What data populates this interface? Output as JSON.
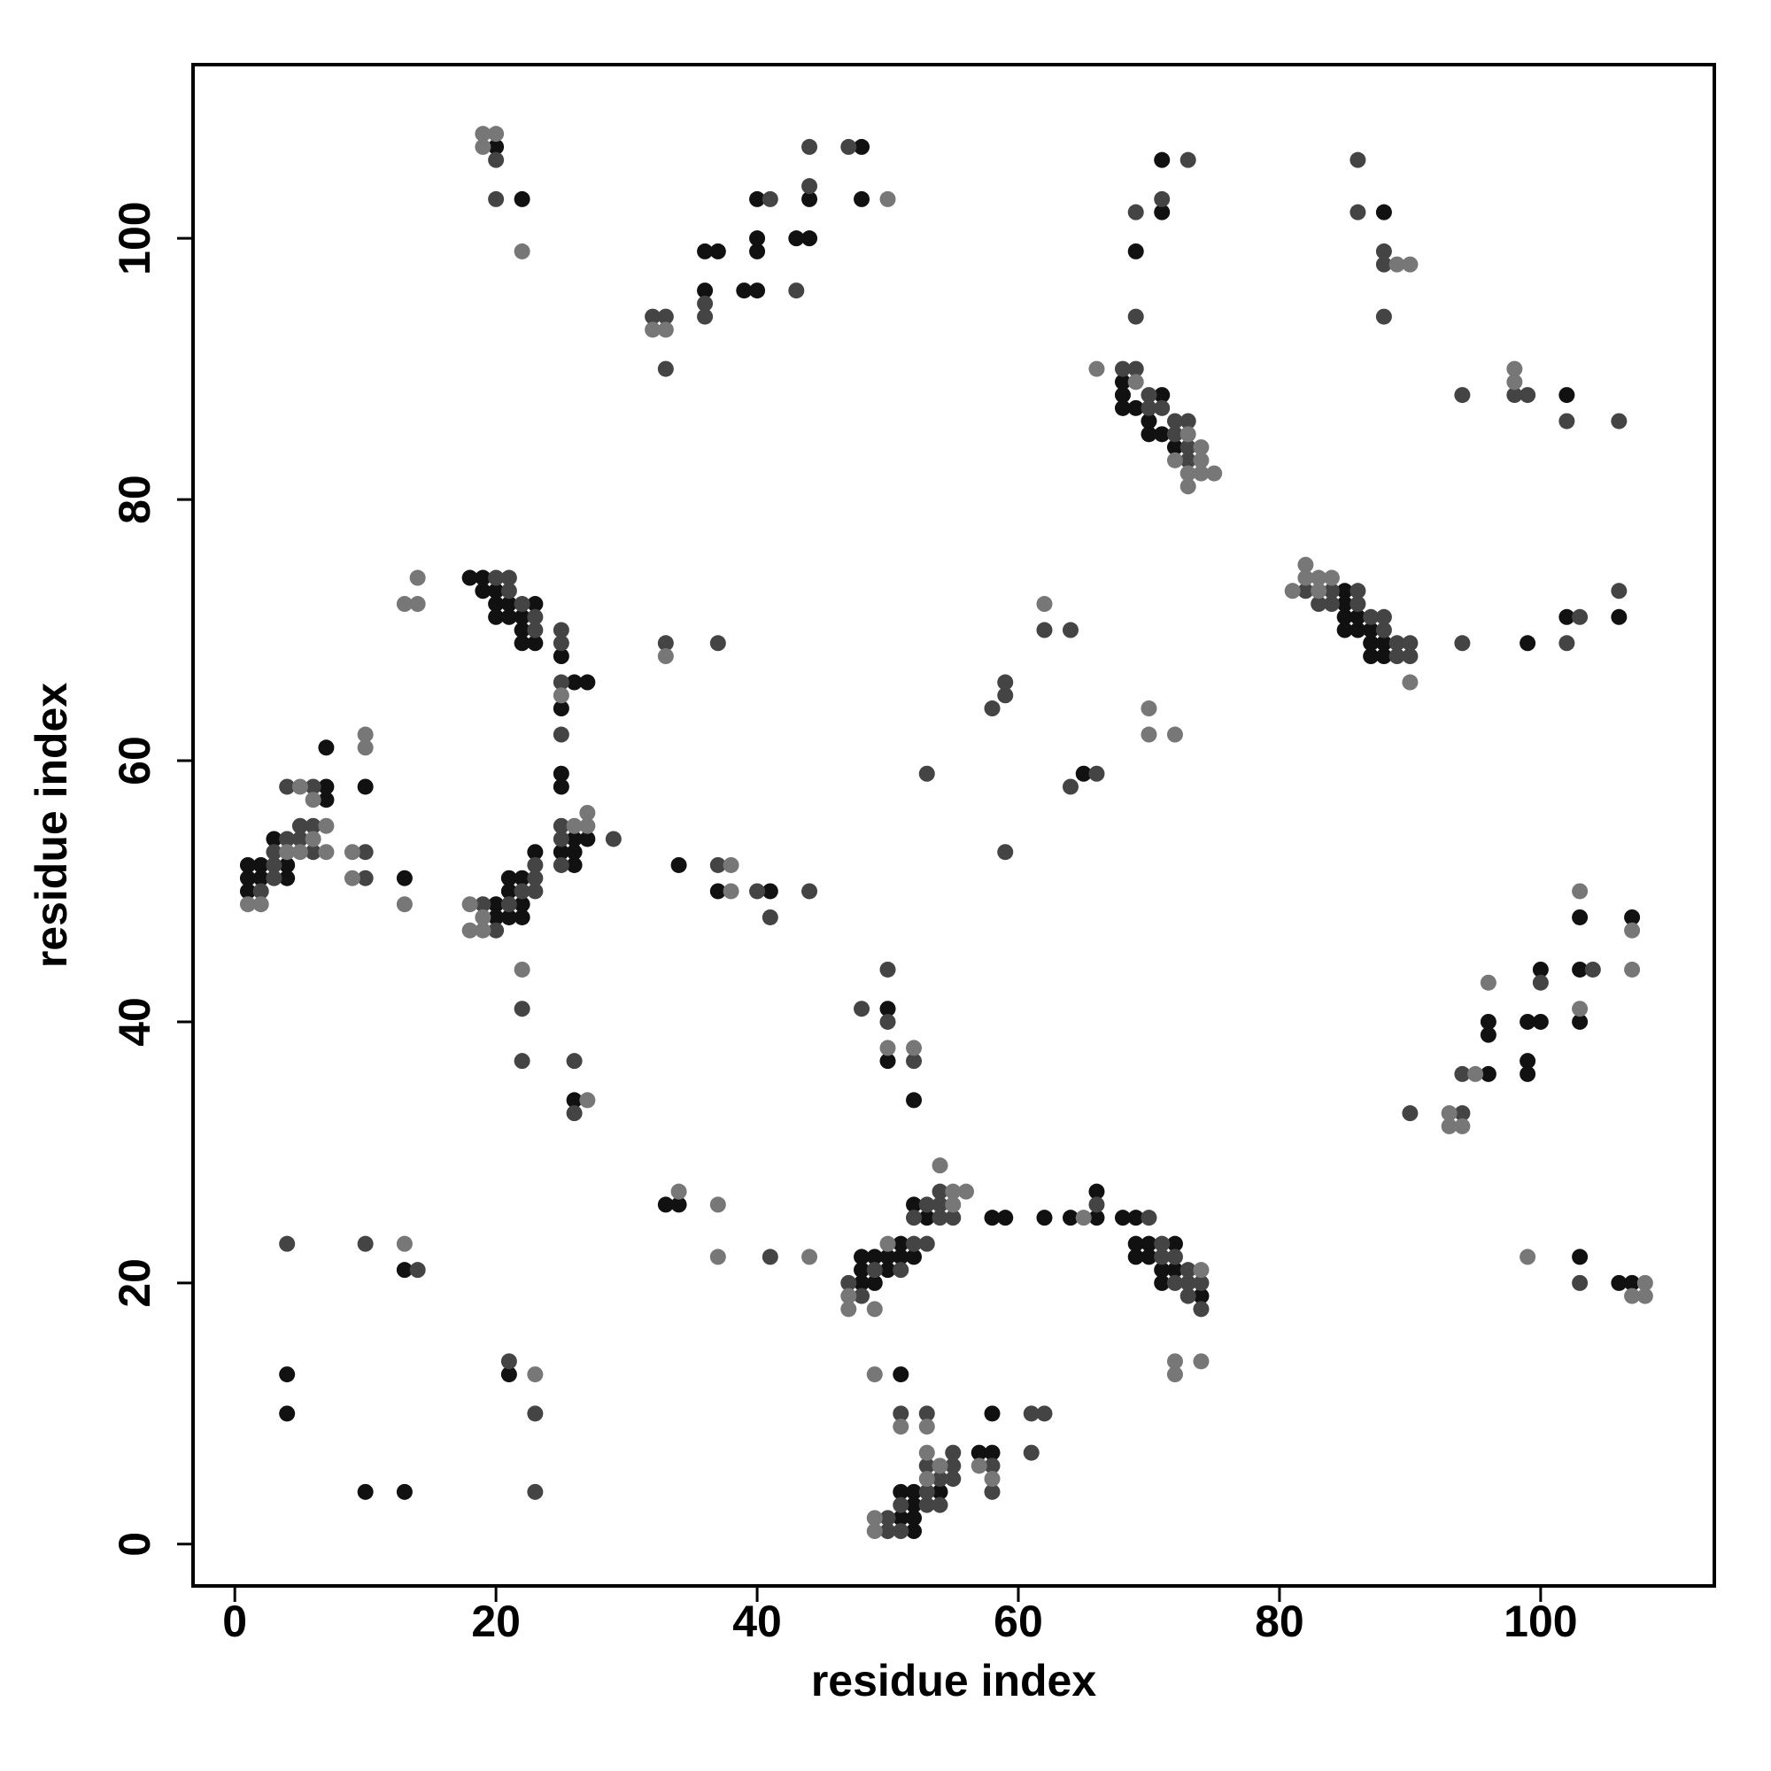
{
  "chart_data": {
    "type": "scatter",
    "xlabel": "residue index",
    "ylabel": "residue index",
    "xlim": [
      -3.2,
      113.3
    ],
    "ylim": [
      -3.2,
      113.3
    ],
    "xticks": [
      0,
      20,
      40,
      60,
      80,
      100
    ],
    "yticks": [
      0,
      20,
      40,
      60,
      80,
      100
    ],
    "series": [
      {
        "color": "#111111",
        "x": [
          20,
          22,
          36,
          37,
          36,
          39,
          40,
          40,
          40,
          40,
          43,
          44,
          44,
          48,
          48,
          71,
          71,
          69,
          68,
          68,
          71,
          68,
          69,
          70,
          70,
          71,
          72,
          88,
          102,
          85,
          85,
          85,
          86,
          85,
          86,
          87,
          87,
          88,
          87,
          88,
          99,
          102,
          106,
          18,
          19,
          19,
          20,
          20,
          21,
          23,
          20,
          21,
          22,
          22,
          22,
          23,
          25,
          26,
          27,
          25,
          25,
          25,
          26,
          27,
          25,
          26,
          26,
          20,
          21,
          22,
          23,
          20,
          21,
          22,
          22,
          21,
          26,
          1,
          2,
          1,
          2,
          1,
          4,
          4,
          3,
          7,
          7,
          7,
          10,
          13,
          34,
          37,
          41,
          65,
          50,
          50,
          52,
          96,
          96,
          96,
          99,
          100,
          100,
          99,
          99,
          103,
          103,
          103,
          107,
          48,
          49,
          48,
          48,
          49,
          50,
          51,
          51,
          50,
          52,
          52,
          53,
          58,
          59,
          62,
          64,
          66,
          66,
          68,
          69,
          69,
          70,
          72,
          69,
          70,
          71,
          72,
          71,
          74,
          34,
          33,
          13,
          4,
          4,
          10,
          13,
          21,
          103,
          106,
          107,
          51,
          58,
          57,
          58,
          54,
          51,
          52,
          52,
          51,
          52,
          52
        ],
        "values": [
          107,
          103,
          99,
          99,
          96,
          96,
          96,
          100,
          99,
          103,
          100,
          100,
          103,
          107,
          103,
          106,
          102,
          99,
          89,
          88,
          88,
          87,
          87,
          86,
          85,
          85,
          84,
          102,
          88,
          73,
          72,
          71,
          71,
          70,
          70,
          70,
          69,
          69,
          68,
          68,
          69,
          71,
          71,
          74,
          74,
          73,
          73,
          72,
          72,
          72,
          71,
          71,
          71,
          70,
          69,
          69,
          68,
          66,
          66,
          64,
          59,
          58,
          54,
          54,
          53,
          53,
          52,
          49,
          51,
          51,
          53,
          48,
          48,
          48,
          49,
          50,
          34,
          52,
          52,
          51,
          51,
          50,
          51,
          52,
          54,
          57,
          58,
          61,
          58,
          51,
          52,
          50,
          50,
          59,
          41,
          37,
          34,
          36,
          40,
          39,
          40,
          40,
          44,
          37,
          36,
          48,
          44,
          40,
          48,
          22,
          22,
          21,
          20,
          20,
          22,
          22,
          23,
          21,
          22,
          26,
          25,
          25,
          25,
          25,
          25,
          25,
          27,
          25,
          25,
          23,
          23,
          23,
          22,
          22,
          21,
          21,
          20,
          19,
          26,
          26,
          21,
          13,
          10,
          4,
          4,
          13,
          22,
          20,
          20,
          13,
          10,
          7,
          7,
          4,
          4,
          4,
          3,
          2,
          2,
          1
        ]
      },
      {
        "color": "#444444",
        "x": [
          20,
          20,
          32,
          33,
          33,
          36,
          36,
          41,
          43,
          44,
          44,
          47,
          73,
          71,
          69,
          69,
          68,
          69,
          70,
          70,
          71,
          72,
          73,
          72,
          73,
          73,
          86,
          86,
          88,
          88,
          88,
          94,
          98,
          99,
          102,
          106,
          82,
          83,
          84,
          86,
          84,
          86,
          87,
          88,
          88,
          89,
          90,
          89,
          90,
          94,
          102,
          103,
          106,
          20,
          21,
          21,
          22,
          23,
          23,
          25,
          25,
          25,
          25,
          25,
          25,
          25,
          29,
          19,
          21,
          22,
          23,
          23,
          23,
          20,
          22,
          22,
          26,
          26,
          2,
          3,
          3,
          3,
          4,
          5,
          4,
          5,
          6,
          6,
          6,
          10,
          10,
          33,
          37,
          37,
          40,
          41,
          44,
          53,
          58,
          59,
          59,
          59,
          62,
          64,
          64,
          66,
          48,
          50,
          50,
          52,
          94,
          94,
          100,
          104,
          90,
          47,
          49,
          48,
          52,
          53,
          51,
          52,
          53,
          54,
          54,
          54,
          55,
          66,
          70,
          71,
          71,
          72,
          72,
          73,
          73,
          73,
          74,
          74,
          41,
          4,
          10,
          14,
          21,
          23,
          23,
          103,
          51,
          53,
          61,
          62,
          61,
          58,
          58,
          53,
          55,
          55,
          54,
          55,
          53,
          53,
          54,
          51,
          50,
          50,
          51
        ],
        "values": [
          106,
          103,
          94,
          94,
          90,
          95,
          94,
          103,
          96,
          104,
          107,
          107,
          106,
          103,
          102,
          94,
          90,
          90,
          88,
          87,
          87,
          86,
          86,
          85,
          84,
          83,
          106,
          102,
          99,
          98,
          94,
          88,
          88,
          88,
          86,
          86,
          73,
          72,
          73,
          73,
          72,
          72,
          71,
          71,
          70,
          69,
          69,
          68,
          68,
          69,
          69,
          71,
          73,
          74,
          74,
          73,
          72,
          71,
          70,
          70,
          69,
          66,
          62,
          55,
          54,
          52,
          54,
          49,
          49,
          50,
          50,
          51,
          52,
          47,
          41,
          37,
          37,
          33,
          50,
          51,
          52,
          53,
          54,
          54,
          58,
          55,
          55,
          53,
          58,
          53,
          51,
          69,
          69,
          52,
          50,
          48,
          50,
          59,
          64,
          65,
          66,
          53,
          70,
          70,
          58,
          59,
          41,
          44,
          40,
          37,
          33,
          36,
          43,
          44,
          33,
          20,
          21,
          19,
          23,
          23,
          21,
          25,
          26,
          26,
          27,
          25,
          25,
          26,
          25,
          23,
          22,
          22,
          20,
          21,
          20,
          19,
          20,
          18,
          22,
          23,
          23,
          21,
          14,
          10,
          4,
          20,
          10,
          10,
          10,
          10,
          7,
          6,
          4,
          6,
          7,
          6,
          5,
          5,
          4,
          3,
          3,
          3,
          2,
          1,
          1
        ]
      },
      {
        "color": "#777777",
        "x": [
          19,
          20,
          19,
          22,
          32,
          33,
          50,
          66,
          69,
          73,
          74,
          72,
          74,
          73,
          74,
          75,
          73,
          89,
          90,
          98,
          98,
          81,
          82,
          82,
          83,
          83,
          84,
          90,
          25,
          26,
          27,
          27,
          18,
          18,
          19,
          19,
          22,
          27,
          1,
          2,
          4,
          5,
          5,
          6,
          7,
          6,
          7,
          9,
          9,
          10,
          10,
          13,
          13,
          14,
          14,
          33,
          38,
          38,
          62,
          70,
          70,
          72,
          50,
          52,
          93,
          93,
          94,
          95,
          96,
          103,
          103,
          107,
          107,
          47,
          47,
          49,
          50,
          55,
          56,
          55,
          54,
          65,
          74,
          34,
          37,
          37,
          44,
          13,
          23,
          72,
          72,
          74,
          99,
          108,
          107,
          108,
          49,
          51,
          53,
          57,
          58,
          53,
          54,
          53,
          49,
          49
        ],
        "values": [
          108,
          108,
          107,
          99,
          93,
          93,
          103,
          90,
          89,
          85,
          84,
          83,
          83,
          82,
          82,
          82,
          81,
          98,
          98,
          90,
          89,
          73,
          75,
          74,
          74,
          73,
          74,
          66,
          65,
          55,
          55,
          56,
          49,
          47,
          47,
          48,
          44,
          34,
          49,
          49,
          53,
          58,
          53,
          54,
          55,
          57,
          53,
          53,
          51,
          61,
          62,
          49,
          72,
          72,
          74,
          68,
          52,
          50,
          72,
          64,
          62,
          62,
          38,
          38,
          33,
          32,
          32,
          36,
          43,
          50,
          41,
          47,
          44,
          19,
          18,
          18,
          23,
          27,
          27,
          26,
          29,
          25,
          21,
          27,
          26,
          22,
          22,
          23,
          13,
          14,
          13,
          14,
          22,
          20,
          19,
          19,
          13,
          9,
          9,
          6,
          5,
          7,
          6,
          5,
          2,
          1
        ]
      }
    ]
  }
}
